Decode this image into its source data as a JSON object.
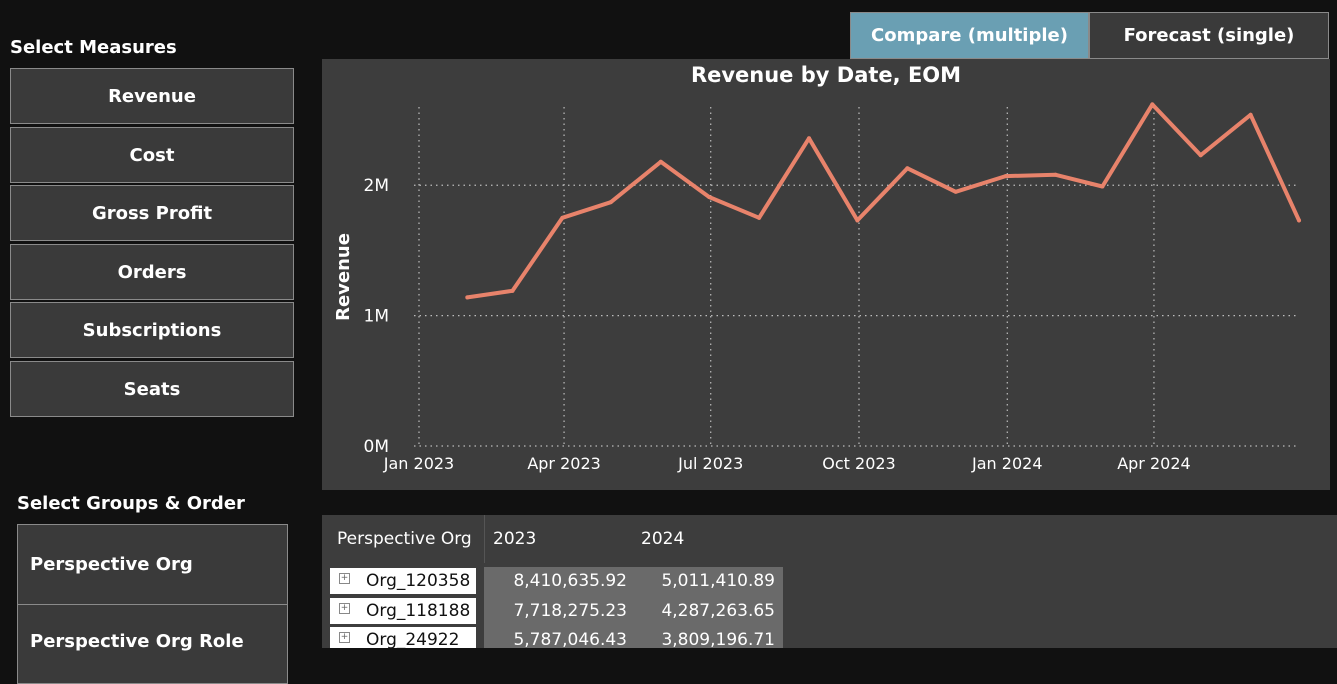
{
  "measures": {
    "title": "Select Measures",
    "items": [
      "Revenue",
      "Cost",
      "Gross Profit",
      "Orders",
      "Subscriptions",
      "Seats"
    ]
  },
  "groups": {
    "title": "Select Groups & Order",
    "items": [
      "Perspective Org",
      "Perspective Org Role"
    ]
  },
  "mode_toggle": {
    "compare_label": "Compare (multiple)",
    "forecast_label": "Forecast (single)",
    "active": "compare",
    "active_color": "#6a9fb3"
  },
  "chart_data": {
    "type": "line",
    "title": "Revenue by Date, EOM",
    "ylabel": "Revenue",
    "xlabel": "",
    "x": [
      "2023-01-31",
      "2023-02-28",
      "2023-03-31",
      "2023-04-30",
      "2023-05-31",
      "2023-06-30",
      "2023-07-31",
      "2023-08-31",
      "2023-09-30",
      "2023-10-31",
      "2023-11-30",
      "2023-12-31",
      "2024-01-31",
      "2024-02-29",
      "2024-03-31",
      "2024-04-30",
      "2024-05-31",
      "2024-06-30"
    ],
    "series": [
      {
        "name": "Revenue",
        "color": "#e8836b",
        "values": [
          1140000,
          1190000,
          1750000,
          1870000,
          2180000,
          1910000,
          1750000,
          2360000,
          1730000,
          2130000,
          1950000,
          2070000,
          2080000,
          1990000,
          2620000,
          2230000,
          2540000,
          1730000
        ]
      }
    ],
    "ylim": [
      0,
      2600000
    ],
    "yticks": [
      0,
      1000000,
      2000000
    ],
    "ytick_labels": [
      "0M",
      "1M",
      "2M"
    ],
    "xticks": [
      "2023-01",
      "2023-04",
      "2023-07",
      "2023-10",
      "2024-01",
      "2024-04"
    ],
    "xtick_labels": [
      "Jan 2023",
      "Apr 2023",
      "Jul 2023",
      "Oct 2023",
      "Jan 2024",
      "Apr 2024"
    ],
    "grid": true,
    "grid_style": "dotted"
  },
  "table": {
    "headers": [
      "Perspective Org",
      "2023",
      "2024"
    ],
    "rows": [
      {
        "name": "Org_120358",
        "v2023": "8,410,635.92",
        "v2024": "5,011,410.89"
      },
      {
        "name": "Org_118188",
        "v2023": "7,718,275.23",
        "v2024": "4,287,263.65"
      },
      {
        "name": "Org_24922",
        "v2023": "5,787,046.43",
        "v2024": "3,809,196.71"
      }
    ]
  }
}
